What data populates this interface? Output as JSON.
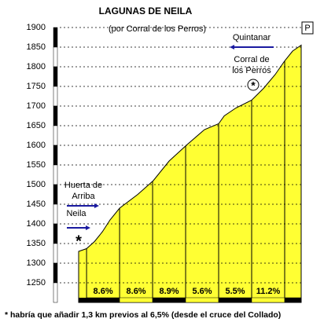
{
  "chart_data": {
    "type": "area",
    "title": "LAGUNAS DE NEILA",
    "subtitle": "(por Corral de los Perros)",
    "x": [
      -0.24,
      0,
      0.24,
      0.48,
      0.71,
      1,
      1.55,
      2.02,
      2.5,
      3.02,
      3.57,
      4,
      4.17,
      4.52,
      5,
      5.36,
      5.71,
      6,
      6.24,
      6.5
    ],
    "values": [
      1330,
      1337,
      1355,
      1380,
      1410,
      1440,
      1475,
      1510,
      1560,
      1600,
      1640,
      1655,
      1675,
      1695,
      1715,
      1745,
      1780,
      1815,
      1840,
      1855
    ],
    "color": "#ffff33",
    "xlim": [
      -0.24,
      6.5
    ],
    "ylim": [
      1200,
      1900
    ],
    "yticks": [
      1250,
      1300,
      1350,
      1400,
      1450,
      1500,
      1550,
      1600,
      1650,
      1700,
      1750,
      1800,
      1850,
      1900
    ],
    "grid": true,
    "km_marks": [
      0,
      1,
      2,
      3,
      4,
      5,
      6
    ],
    "gradients": {
      "values": [
        8.6,
        8.6,
        8.9,
        5.6,
        5.5,
        11.2
      ],
      "value_labels": [
        "8.6%",
        "8.6%",
        "8.9%",
        "5.6%",
        "5.5%",
        "11.2%"
      ]
    },
    "annotations": {
      "end_mark": "P",
      "quintanar": "Quintanar",
      "corral": [
        "Corral de",
        "los Perros"
      ],
      "huerta": [
        "Huerta de",
        "Arriba"
      ],
      "neila": "Neila",
      "start_star": "*",
      "footnote": "* habría que añadir 1,3 km previos al 6,5%  (desde  el cruce del Collado)"
    }
  }
}
